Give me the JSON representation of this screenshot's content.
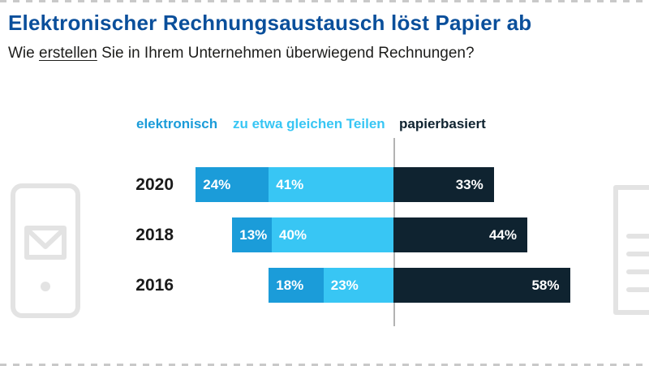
{
  "header": {
    "title": "Elektronischer Rechnungsaustausch löst Papier ab",
    "question_prefix": "Wie ",
    "question_underlined": "erstellen",
    "question_suffix": " Sie in Ihrem Unternehmen überwiegend Rechnungen?"
  },
  "colors": {
    "title": "#0a4f9b",
    "electronic": "#1b9cd9",
    "equal": "#38c6f4",
    "paper": "#0f2330",
    "year_label": "#1a1a1a",
    "divider": "#b3b3b3",
    "decorative": "#e3e3e3"
  },
  "legend": [
    {
      "label": "elektronisch",
      "color_key": "electronic"
    },
    {
      "label": "zu etwa gleichen Teilen",
      "color_key": "equal"
    },
    {
      "label": "papierbasiert",
      "color_key": "paper"
    }
  ],
  "chart_data": {
    "type": "bar",
    "orientation": "horizontal",
    "layout_hint": "stacked bars; electronic + equal segments right-aligned to a vertical divider, paper-based extends right of it",
    "unit": "%",
    "categories": [
      "2020",
      "2018",
      "2016"
    ],
    "series": [
      {
        "name": "elektronisch",
        "color_key": "electronic",
        "values": [
          24,
          13,
          18
        ]
      },
      {
        "name": "zu etwa gleichen Teilen",
        "color_key": "equal",
        "values": [
          41,
          40,
          23
        ]
      },
      {
        "name": "papierbasiert",
        "color_key": "paper",
        "values": [
          33,
          44,
          58
        ]
      }
    ]
  },
  "icons": {
    "left": "smartphone-invoice-icon",
    "right": "paper-document-icon"
  }
}
